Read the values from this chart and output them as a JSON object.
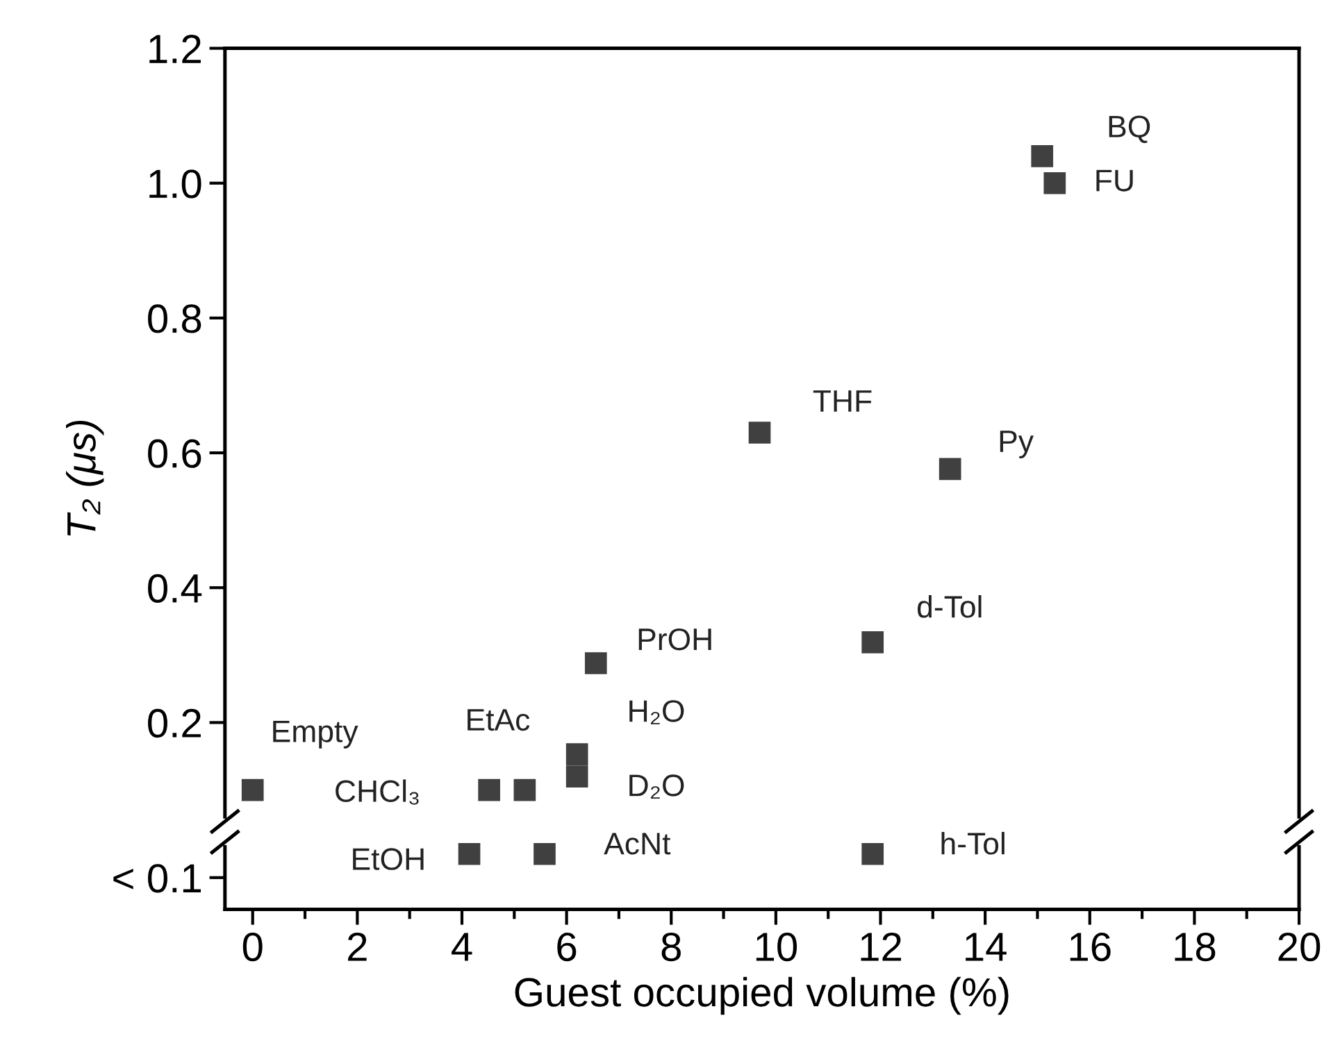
{
  "chart_data": {
    "type": "scatter",
    "xlabel": "Guest occupied volume (%)",
    "ylabel": "T₂ (μs)",
    "x": [
      0,
      4.14,
      4.52,
      5.2,
      5.58,
      6.2,
      6.2,
      6.56,
      9.69,
      11.85,
      11.85,
      13.33,
      15.09,
      15.33
    ],
    "series": [
      {
        "color": "#404040",
        "values": [
          0.1,
          0.005,
          0.1,
          0.1,
          0.005,
          0.153,
          0.12,
          0.288,
          0.63,
          0.319,
          0.005,
          0.576,
          1.04,
          1.0
        ]
      }
    ],
    "marker": "square",
    "xlim": [
      -0.53,
      20
    ],
    "ylim": [
      -0.077,
      1.2
    ],
    "xticks": [
      0,
      2,
      4,
      6,
      8,
      10,
      12,
      14,
      16,
      18,
      20
    ],
    "yticks": [
      {
        "value": -0.03,
        "label": "< 0.1"
      },
      0.2,
      0.4,
      0.6,
      0.8,
      {
        "value": 1,
        "label": "1.0"
      },
      1.2
    ],
    "annotations": [
      {
        "text": "Empty",
        "x": 0,
        "y": 0.1
      },
      {
        "text": "EtOH",
        "x": 4.14,
        "y": 0.005
      },
      {
        "text": "CHCl₃",
        "x": 4.52,
        "y": 0.1
      },
      {
        "text": "EtAc",
        "x": 5.2,
        "y": 0.1
      },
      {
        "text": "AcNt",
        "x": 5.58,
        "y": 0.005
      },
      {
        "text": "H₂O",
        "x": 6.2,
        "y": 0.153
      },
      {
        "text": "D₂O",
        "x": 6.2,
        "y": 0.12
      },
      {
        "text": "PrOH",
        "x": 6.56,
        "y": 0.288
      },
      {
        "text": "THF",
        "x": 9.69,
        "y": 0.63
      },
      {
        "text": "d-Tol",
        "x": 11.85,
        "y": 0.319
      },
      {
        "text": "h-Tol",
        "x": 11.85,
        "y": 0.005
      },
      {
        "text": "Py",
        "x": 13.33,
        "y": 0.576
      },
      {
        "text": "BQ",
        "x": 15.09,
        "y": 1.04
      },
      {
        "text": "FU",
        "x": 15.33,
        "y": 1.0
      }
    ],
    "grid": false,
    "legend": false
  }
}
